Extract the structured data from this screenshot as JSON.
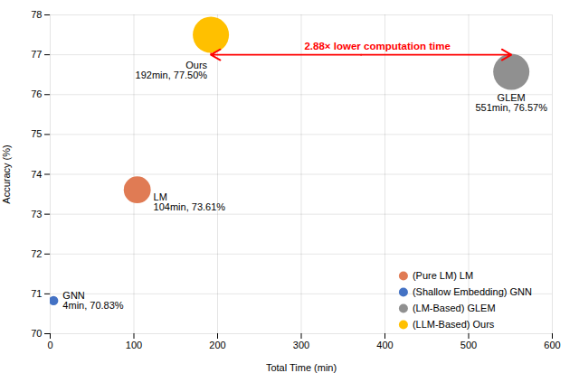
{
  "chart_data": {
    "type": "scatter",
    "xlabel": "Total Time (min)",
    "ylabel": "Accuracy (%)",
    "xlim": [
      0,
      600
    ],
    "ylim": [
      70,
      78
    ],
    "xticks": [
      0,
      100,
      200,
      300,
      400,
      500,
      600
    ],
    "yticks": [
      70,
      71,
      72,
      73,
      74,
      75,
      76,
      77,
      78
    ],
    "grid": true,
    "legend": "lower right",
    "series": [
      {
        "name": "(Pure LM) LM",
        "color": "#E07B54",
        "x": [
          104
        ],
        "values": [
          73.61
        ],
        "sizes": [
          500
        ]
      },
      {
        "name": "(Shallow Embedding) GNN",
        "color": "#4472C4",
        "x": [
          4
        ],
        "values": [
          70.83
        ],
        "sizes": [
          60
        ]
      },
      {
        "name": "(LM-Based) GLEM",
        "color": "#909090",
        "x": [
          551
        ],
        "values": [
          76.57
        ],
        "sizes": [
          900
        ]
      },
      {
        "name": "(LLM-Based) Ours",
        "color": "#FFC000",
        "x": [
          192
        ],
        "values": [
          77.5
        ],
        "sizes": [
          900
        ]
      }
    ],
    "annotations": [
      {
        "text": "GNN\n4min, 70.83%",
        "x": 4,
        "y": 70.83
      },
      {
        "text": "LM\n104min, 73.61%",
        "x": 104,
        "y": 73.61
      },
      {
        "text": "GLEM\n551min, 76.57%",
        "x": 551,
        "y": 76.57
      },
      {
        "text": "Ours\n192min, 77.50%",
        "x": 192,
        "y": 77.5
      }
    ],
    "arrow": {
      "text": "2.88× lower computation time",
      "x1": 192,
      "x2": 551,
      "y": 77.0,
      "color": "red"
    }
  }
}
